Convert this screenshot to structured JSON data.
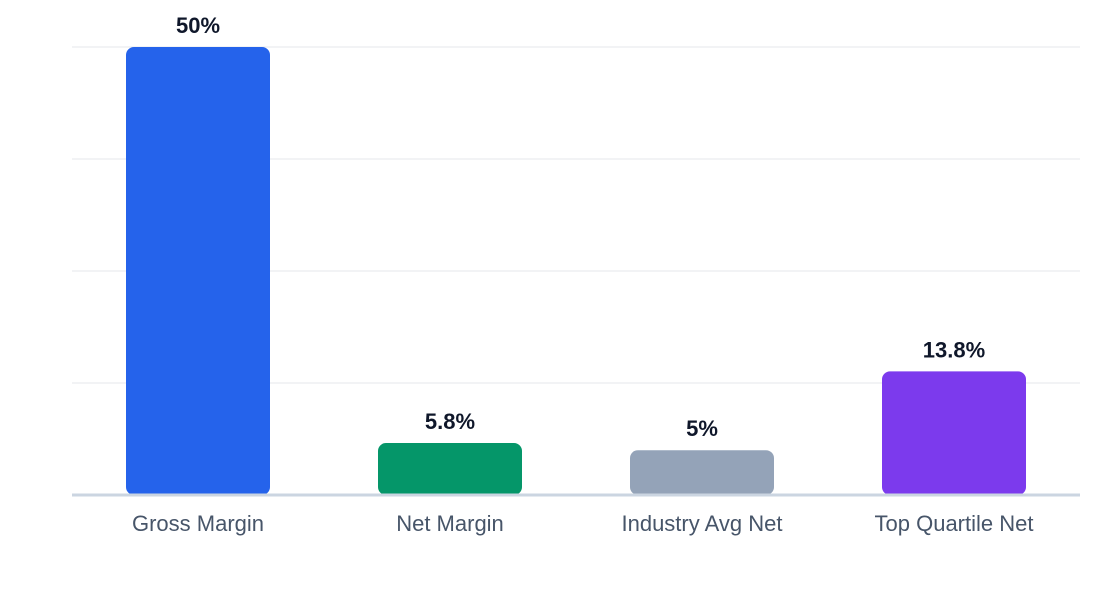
{
  "chart_data": {
    "type": "bar",
    "categories": [
      "Gross Margin",
      "Net Margin",
      "Industry Avg Net",
      "Top Quartile Net"
    ],
    "values": [
      50,
      5.8,
      5,
      13.8
    ],
    "value_labels": [
      "50%",
      "5.8%",
      "5%",
      "13.8%"
    ],
    "ylim": [
      0,
      50
    ],
    "grid": true,
    "colors": [
      "#2563eb",
      "#059669",
      "#94a3b8",
      "#7c3aed"
    ],
    "gridline_color": "#e5e7eb",
    "baseline_color": "#cbd5e1"
  }
}
